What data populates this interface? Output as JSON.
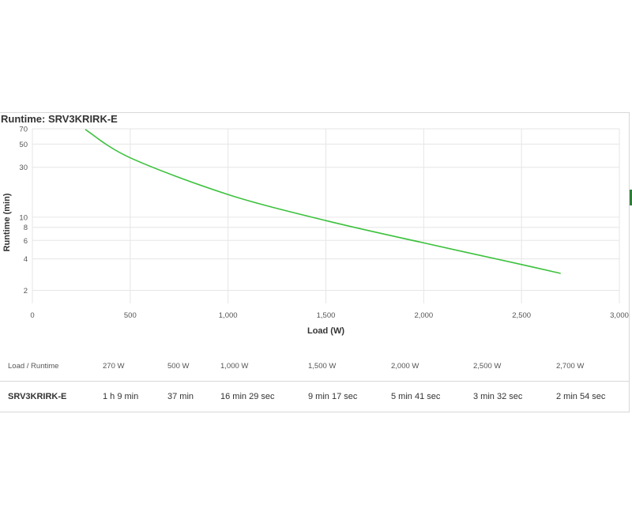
{
  "title": "Runtime: SRV3KRIRK-E",
  "chart_data": {
    "type": "line",
    "xlabel": "Load (W)",
    "ylabel": "Runtime (min)",
    "x_ticks": [
      0,
      500,
      1000,
      1500,
      2000,
      2500,
      3000
    ],
    "x_tick_labels": [
      "0",
      "500",
      "1,000",
      "1,500",
      "2,000",
      "2,500",
      "3,000"
    ],
    "y_ticks": [
      2,
      4,
      6,
      8,
      10,
      30,
      50,
      70
    ],
    "y_tick_labels": [
      "2",
      "4",
      "6",
      "8",
      "10",
      "30",
      "50",
      "70"
    ],
    "xlim": [
      0,
      3000
    ],
    "ylim": [
      1.5,
      70
    ],
    "y_scale": "log",
    "grid": true,
    "series": [
      {
        "color": "#3cc13c",
        "x": [
          270,
          500,
          1000,
          1500,
          2000,
          2500,
          2700
        ],
        "y": [
          69,
          37,
          16.48,
          9.28,
          5.68,
          3.53,
          2.9
        ]
      }
    ]
  },
  "table": {
    "header_label": "Load / Runtime",
    "columns": [
      "270 W",
      "500 W",
      "1,000 W",
      "1,500 W",
      "2,000 W",
      "2,500 W",
      "2,700 W"
    ],
    "rows": [
      {
        "name": "SRV3KRIRK-E",
        "values": [
          "1 h 9 min",
          "37 min",
          "16 min 29 sec",
          "9 min 17 sec",
          "5 min 41 sec",
          "3 min 32 sec",
          "2 min 54 sec"
        ]
      }
    ]
  }
}
